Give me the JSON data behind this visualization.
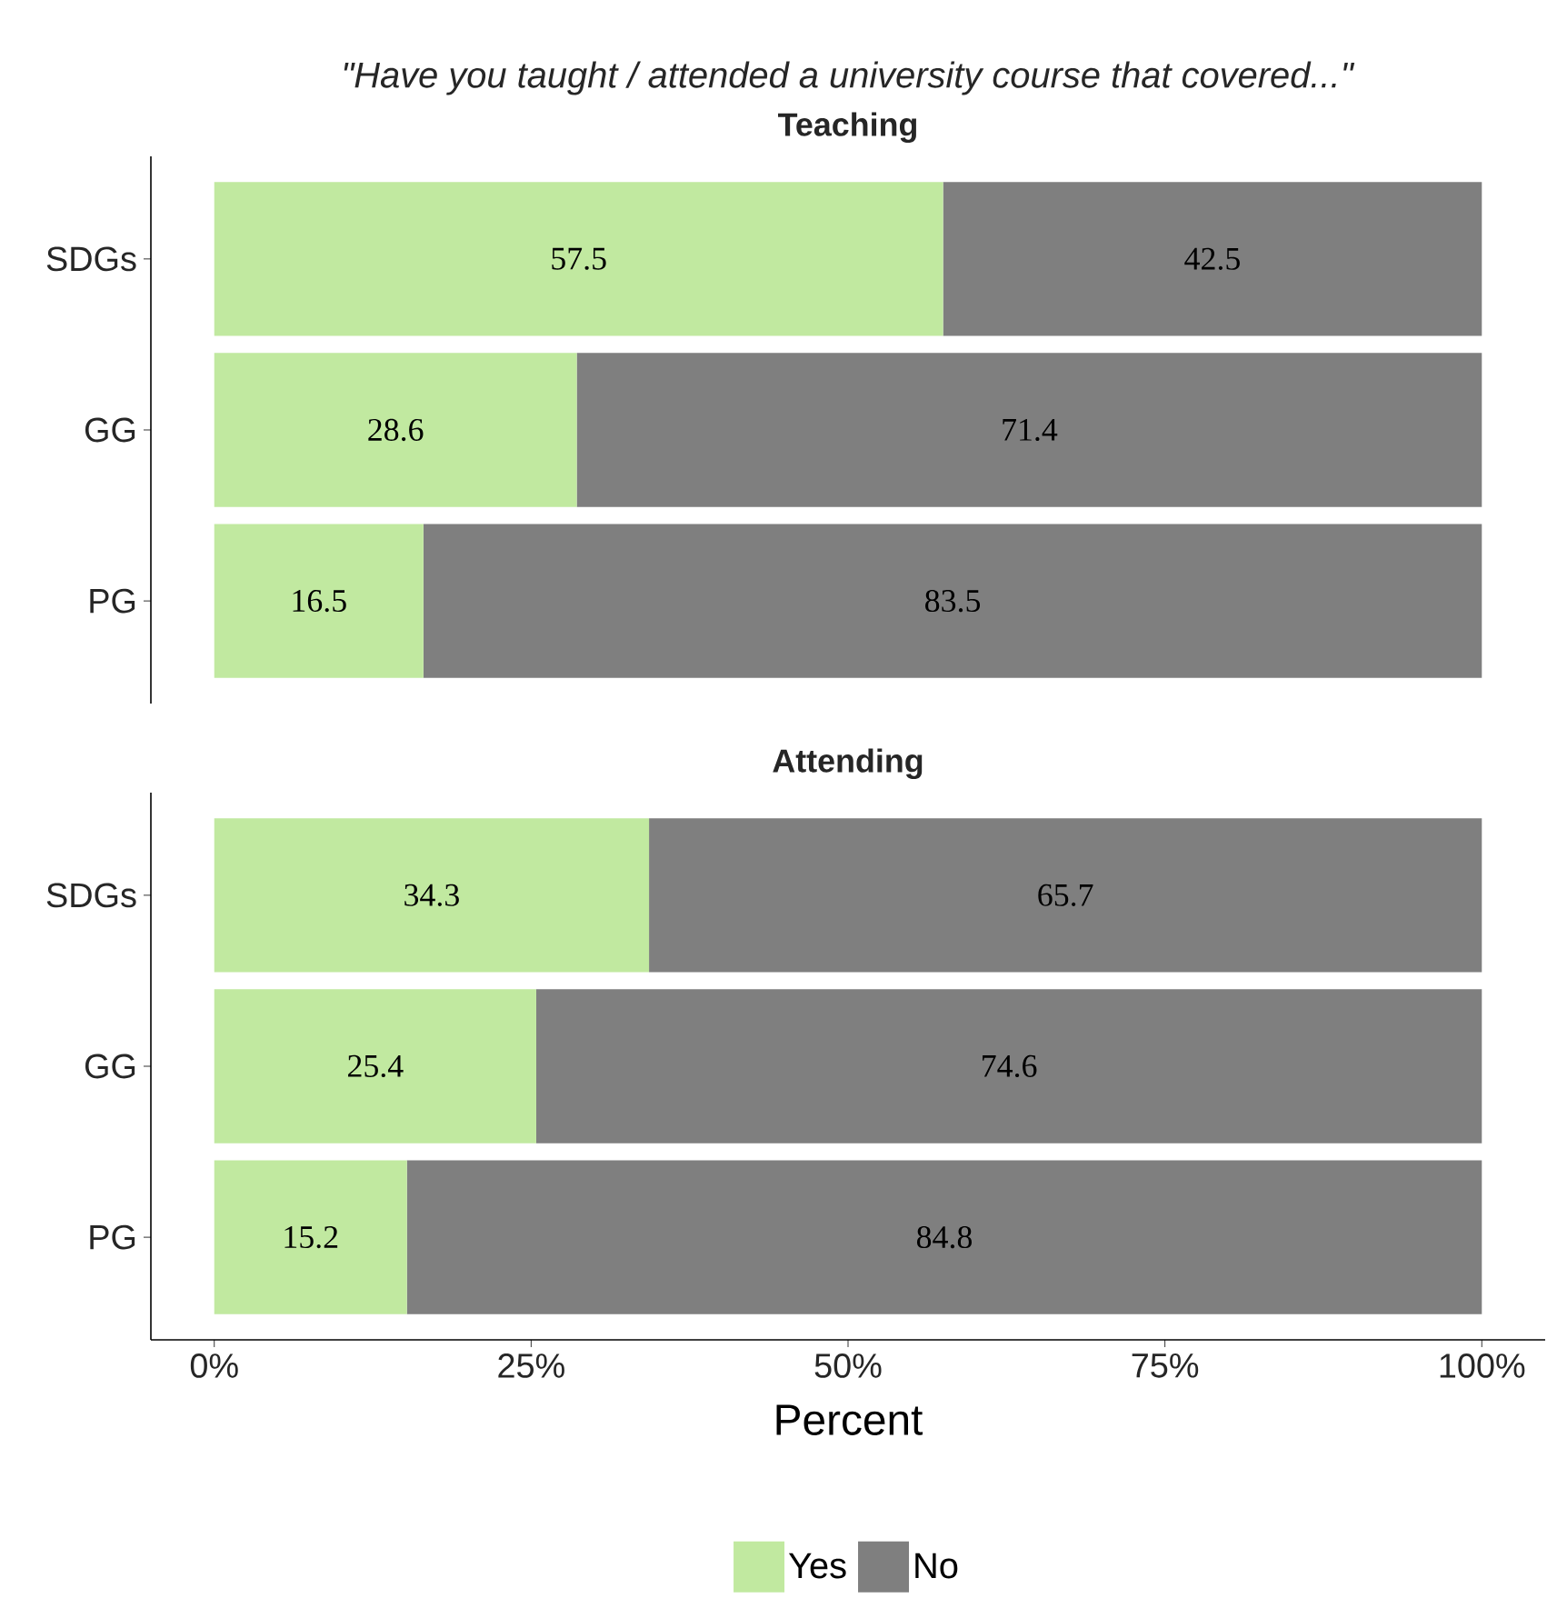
{
  "chart_data": [
    {
      "type": "bar",
      "orientation": "horizontal",
      "stacked": true,
      "title": "\"Have you taught / attended a university course that covered...\"",
      "subtitle": "Teaching",
      "categories": [
        "SDGs",
        "GG",
        "PG"
      ],
      "series": [
        {
          "color": "#c1e9a0",
          "values": [
            57.5,
            28.6,
            16.5
          ]
        },
        {
          "color": "#7f7f7f",
          "values": [
            42.5,
            71.4,
            83.5
          ]
        }
      ],
      "tick_labels": "y",
      "data_labels": true
    },
    {
      "type": "bar",
      "orientation": "horizontal",
      "stacked": true,
      "title": "Attending",
      "categories": [
        "SDGs",
        "GG",
        "PG"
      ],
      "series": [
        {
          "name": "Yes",
          "color": "#c1e9a0",
          "values": [
            34.3,
            25.4,
            15.2
          ]
        },
        {
          "name": "No",
          "color": "#7f7f7f",
          "values": [
            65.7,
            74.6,
            84.8
          ]
        }
      ],
      "xlim": [
        -5,
        105
      ],
      "xticks": [
        {
          "value": 0,
          "label": "0%"
        },
        {
          "value": 25,
          "label": "25%"
        },
        {
          "value": 50,
          "label": "50%"
        },
        {
          "value": 75,
          "label": "75%"
        },
        {
          "value": 100,
          "label": "100%"
        }
      ],
      "xlabel": "Percent",
      "legend": "bottom",
      "data_labels": true
    }
  ]
}
